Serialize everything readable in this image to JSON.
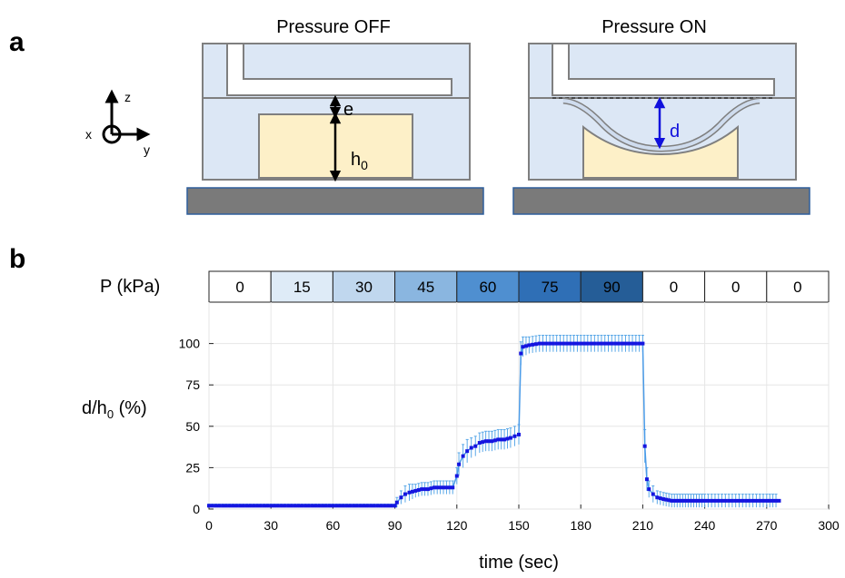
{
  "panel_a": {
    "letter": "a",
    "left_title": "Pressure OFF",
    "right_title": "Pressure ON",
    "label_e": "e",
    "label_h": "h",
    "label_h_sub": "0",
    "label_d": "d",
    "axis_z": "z",
    "axis_x": "x",
    "axis_y": "y",
    "colors": {
      "chamber": "#dce7f5",
      "cavity": "#fdf0c8",
      "base": "#7a7a7a",
      "outline": "#7f7f7f",
      "arrow_d": "#1010dd"
    }
  },
  "panel_b": {
    "letter": "b",
    "pressure_label": "P (kPa)",
    "pressure_values": [
      "0",
      "15",
      "30",
      "45",
      "60",
      "75",
      "90",
      "0",
      "0",
      "0"
    ],
    "pressure_colors": [
      "#ffffff",
      "#deebf7",
      "#c0d7ee",
      "#8ab6e0",
      "#4f8fd0",
      "#2f6fb6",
      "#255d97",
      "#ffffff",
      "#ffffff",
      "#ffffff"
    ],
    "ylabel_main": "d/h",
    "ylabel_sub": "0",
    "ylabel_unit": " (%)",
    "xlabel": "time (sec)"
  },
  "chart_data": {
    "type": "line",
    "x_ticks": [
      "0",
      "30",
      "60",
      "90",
      "120",
      "150",
      "180",
      "210",
      "240",
      "270",
      "300"
    ],
    "y_ticks": [
      "0",
      "25",
      "50",
      "75",
      "100"
    ],
    "xlim": [
      0,
      300
    ],
    "ylim": [
      0,
      125
    ],
    "grid": true,
    "series_color": "#1515e0",
    "errorbar_color": "#5aa8e8",
    "segments": [
      {
        "x_start": 0,
        "x_end": 90,
        "y_start": 2,
        "y_end": 2,
        "err": 1
      },
      {
        "x_start": 91,
        "x_end": 118,
        "y_start": 8,
        "y_end": 13,
        "err": 5
      },
      {
        "x_start": 121,
        "x_end": 150,
        "y_start": 25,
        "y_end": 45,
        "err": 7
      },
      {
        "x_start": 152,
        "x_end": 210,
        "y_start": 97,
        "y_end": 100,
        "err": 5
      },
      {
        "x_start": 212,
        "x_end": 276,
        "y_start": 10,
        "y_end": 5,
        "err": 4
      }
    ],
    "points": [
      [
        0,
        2
      ],
      [
        5,
        2
      ],
      [
        10,
        2
      ],
      [
        15,
        2
      ],
      [
        20,
        2
      ],
      [
        25,
        2
      ],
      [
        30,
        2
      ],
      [
        35,
        2
      ],
      [
        40,
        2
      ],
      [
        45,
        2
      ],
      [
        50,
        2
      ],
      [
        55,
        2
      ],
      [
        60,
        2
      ],
      [
        65,
        2
      ],
      [
        70,
        2
      ],
      [
        75,
        2
      ],
      [
        80,
        2
      ],
      [
        85,
        2
      ],
      [
        90,
        2
      ],
      [
        91,
        4
      ],
      [
        93,
        7
      ],
      [
        95,
        9
      ],
      [
        97,
        10
      ],
      [
        100,
        11
      ],
      [
        103,
        12
      ],
      [
        106,
        12
      ],
      [
        109,
        13
      ],
      [
        112,
        13
      ],
      [
        115,
        13
      ],
      [
        118,
        13
      ],
      [
        120,
        20
      ],
      [
        121,
        27
      ],
      [
        123,
        32
      ],
      [
        125,
        35
      ],
      [
        127,
        37
      ],
      [
        129,
        38
      ],
      [
        131,
        40
      ],
      [
        134,
        41
      ],
      [
        137,
        41
      ],
      [
        140,
        42
      ],
      [
        143,
        42
      ],
      [
        146,
        43
      ],
      [
        148,
        44
      ],
      [
        150,
        45
      ],
      [
        151,
        94
      ],
      [
        152,
        98
      ],
      [
        155,
        99
      ],
      [
        160,
        100
      ],
      [
        165,
        100
      ],
      [
        170,
        100
      ],
      [
        175,
        100
      ],
      [
        180,
        100
      ],
      [
        185,
        100
      ],
      [
        190,
        100
      ],
      [
        195,
        100
      ],
      [
        200,
        100
      ],
      [
        205,
        100
      ],
      [
        210,
        100
      ],
      [
        211,
        38
      ],
      [
        212,
        18
      ],
      [
        213,
        12
      ],
      [
        215,
        9
      ],
      [
        217,
        7
      ],
      [
        220,
        6
      ],
      [
        224,
        5
      ],
      [
        228,
        5
      ],
      [
        232,
        5
      ],
      [
        236,
        5
      ],
      [
        240,
        5
      ],
      [
        245,
        5
      ],
      [
        250,
        5
      ],
      [
        255,
        5
      ],
      [
        260,
        5
      ],
      [
        265,
        5
      ],
      [
        270,
        5
      ],
      [
        276,
        5
      ]
    ],
    "errors": [
      1,
      1,
      1,
      1,
      1,
      1,
      1,
      1,
      1,
      1,
      1,
      1,
      1,
      1,
      1,
      1,
      1,
      1,
      1,
      3,
      4,
      5,
      5,
      4,
      4,
      4,
      4,
      4,
      4,
      4,
      5,
      7,
      7,
      7,
      6,
      6,
      6,
      6,
      6,
      6,
      6,
      6,
      6,
      6,
      7,
      6,
      5,
      5,
      5,
      5,
      5,
      5,
      5,
      5,
      5,
      5,
      5,
      5,
      10,
      7,
      5,
      5,
      4,
      4,
      4,
      4,
      4,
      4,
      4,
      4,
      4,
      4,
      4,
      4,
      4,
      4
    ]
  }
}
